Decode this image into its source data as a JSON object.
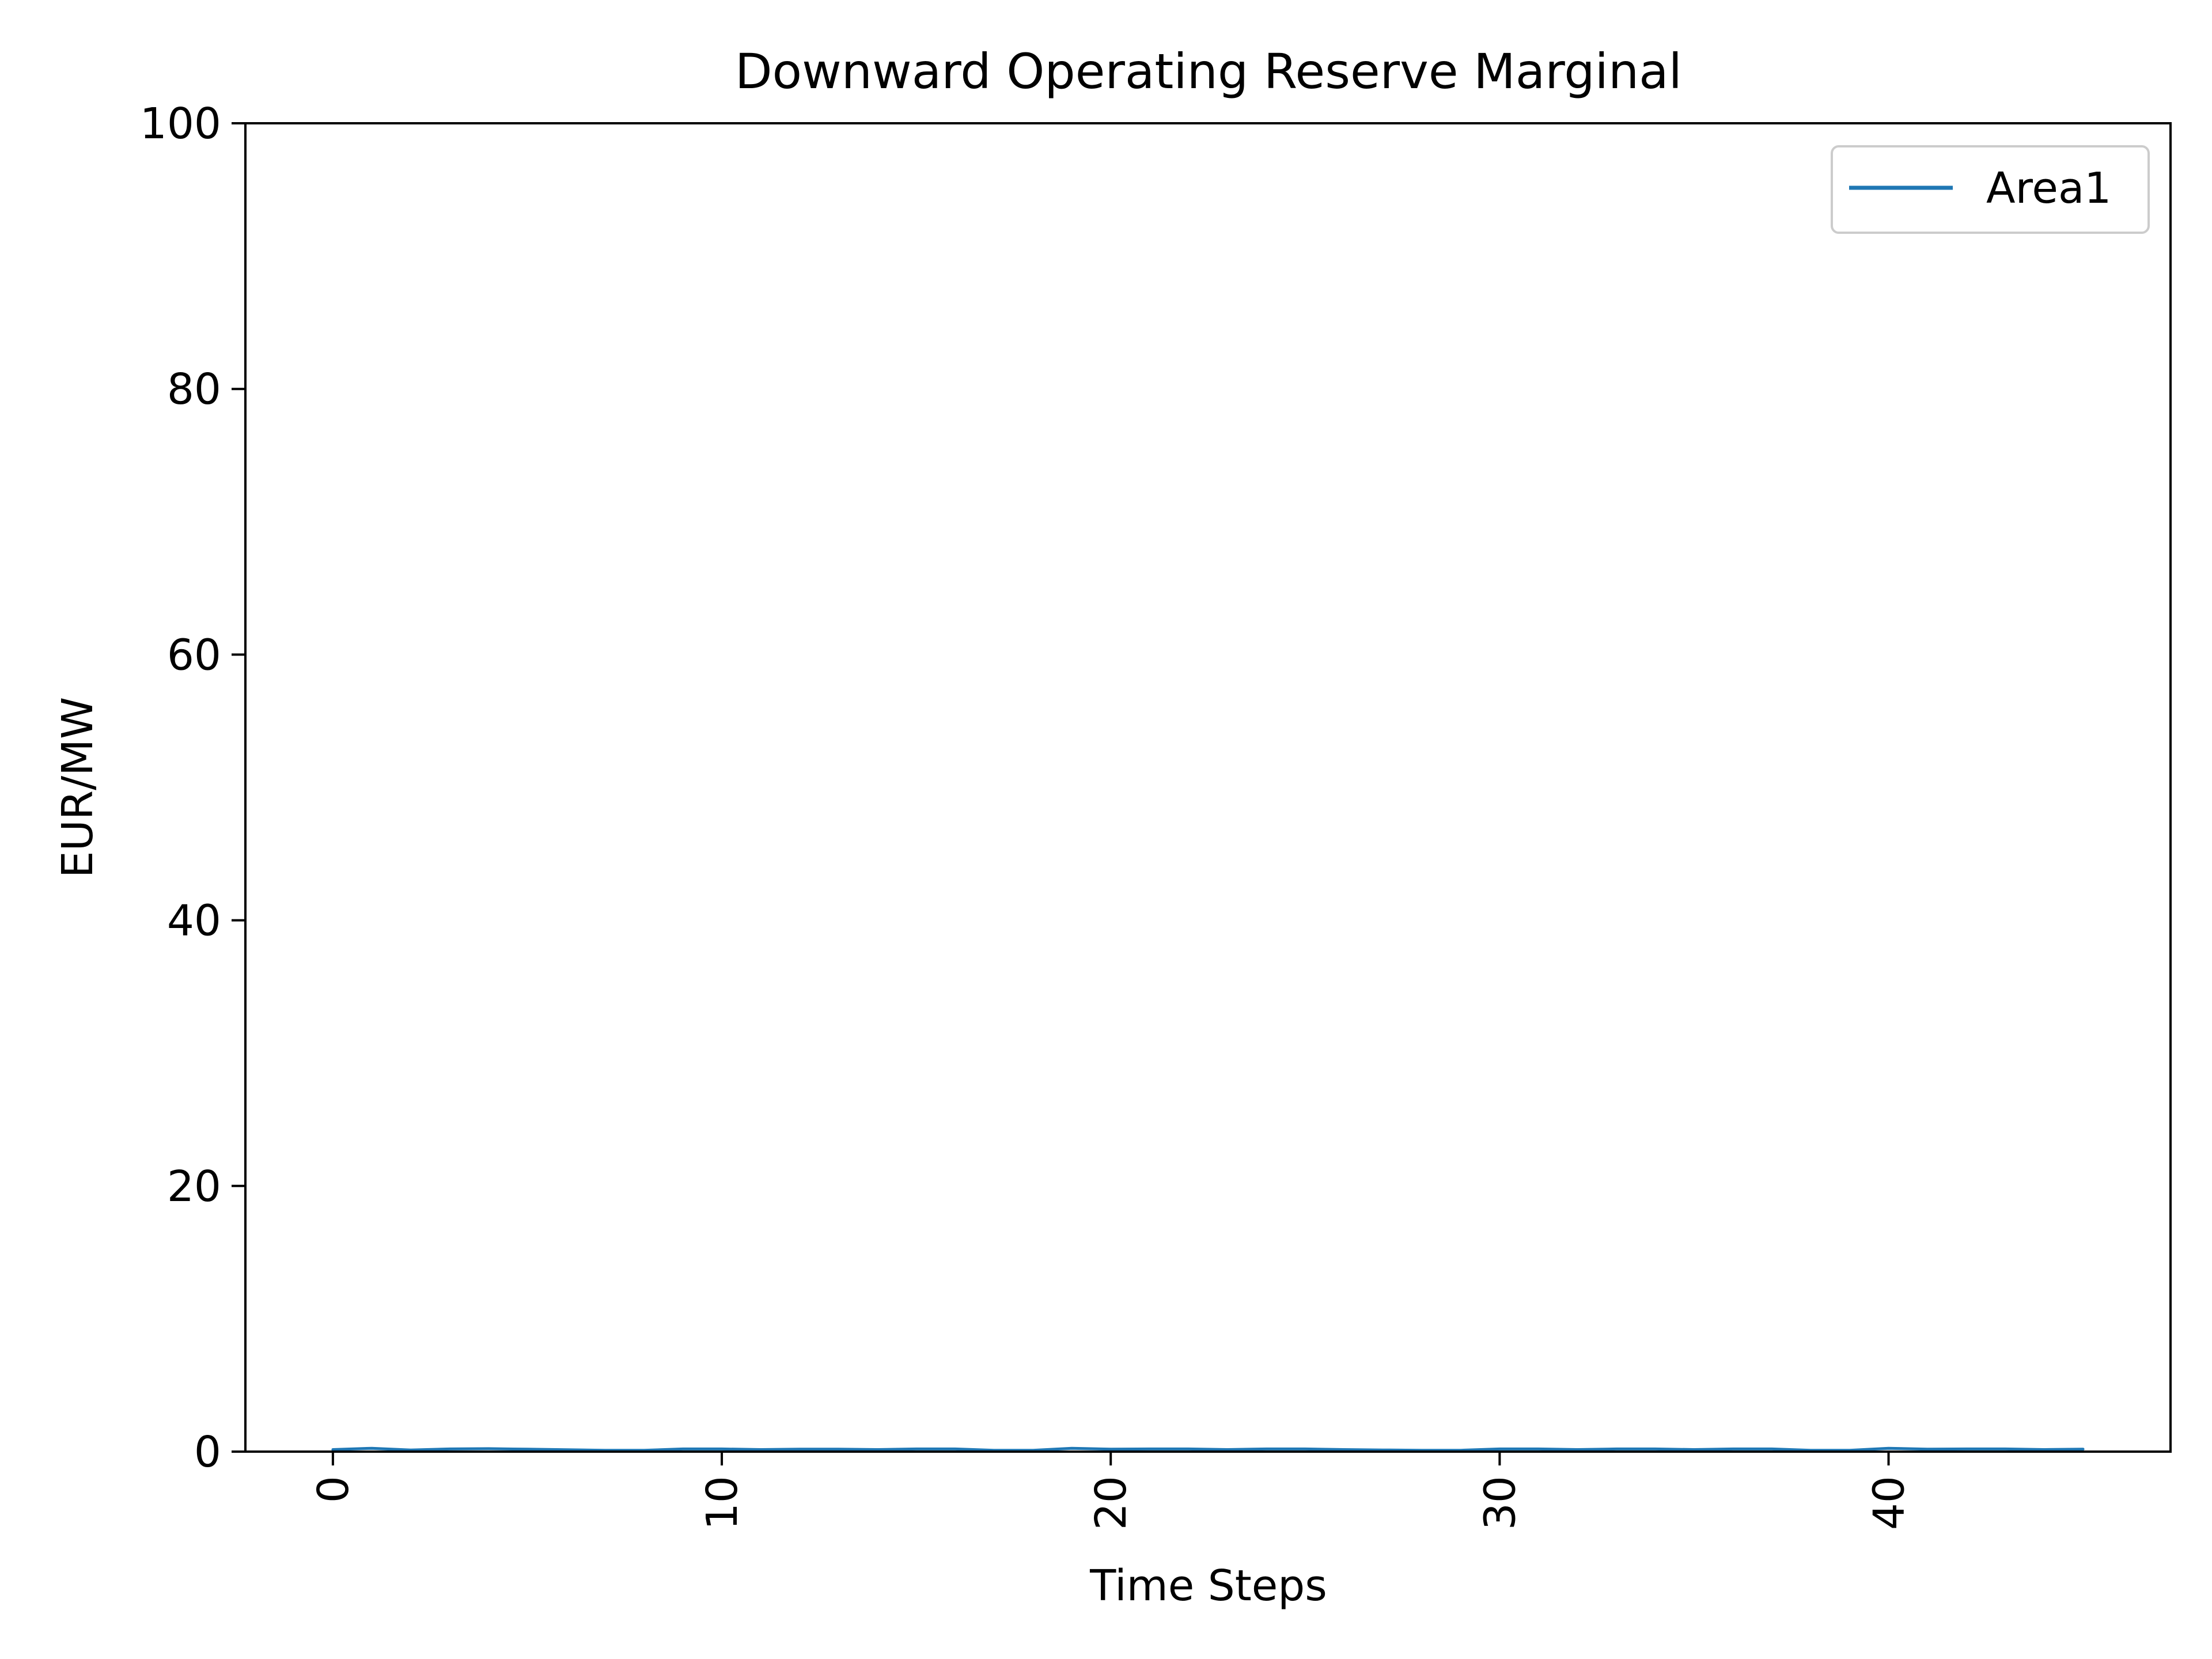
{
  "chart_data": {
    "type": "line",
    "title": "Downward Operating Reserve Marginal",
    "xlabel": "Time Steps",
    "ylabel": "EUR/MW",
    "xlim": [
      -2.25,
      47.25
    ],
    "ylim": [
      0,
      100
    ],
    "x_ticks": [
      0,
      10,
      20,
      30,
      40
    ],
    "x_tick_labels": [
      "0",
      "10",
      "20",
      "30",
      "40"
    ],
    "y_ticks": [
      0,
      20,
      40,
      60,
      80,
      100
    ],
    "y_tick_labels": [
      "0",
      "20",
      "40",
      "60",
      "80",
      "100"
    ],
    "grid": false,
    "legend_position": "top-right",
    "series": [
      {
        "name": "Area1",
        "color": "#1f77b4",
        "x": [
          0,
          1,
          2,
          3,
          4,
          5,
          6,
          7,
          8,
          9,
          10,
          11,
          12,
          13,
          14,
          15,
          16,
          17,
          18,
          19,
          20,
          21,
          22,
          23,
          24,
          25,
          26,
          27,
          28,
          29,
          30,
          31,
          32,
          33,
          34,
          35,
          36,
          37,
          38,
          39,
          40,
          41,
          42,
          43,
          44,
          45
        ],
        "y": [
          0.15,
          0.25,
          0.12,
          0.2,
          0.22,
          0.18,
          0.14,
          0.1,
          0.1,
          0.2,
          0.2,
          0.15,
          0.18,
          0.18,
          0.15,
          0.2,
          0.2,
          0.1,
          0.1,
          0.25,
          0.18,
          0.2,
          0.2,
          0.15,
          0.2,
          0.2,
          0.15,
          0.12,
          0.1,
          0.1,
          0.2,
          0.2,
          0.15,
          0.2,
          0.2,
          0.15,
          0.2,
          0.2,
          0.1,
          0.1,
          0.25,
          0.18,
          0.2,
          0.2,
          0.15,
          0.18
        ]
      }
    ]
  }
}
